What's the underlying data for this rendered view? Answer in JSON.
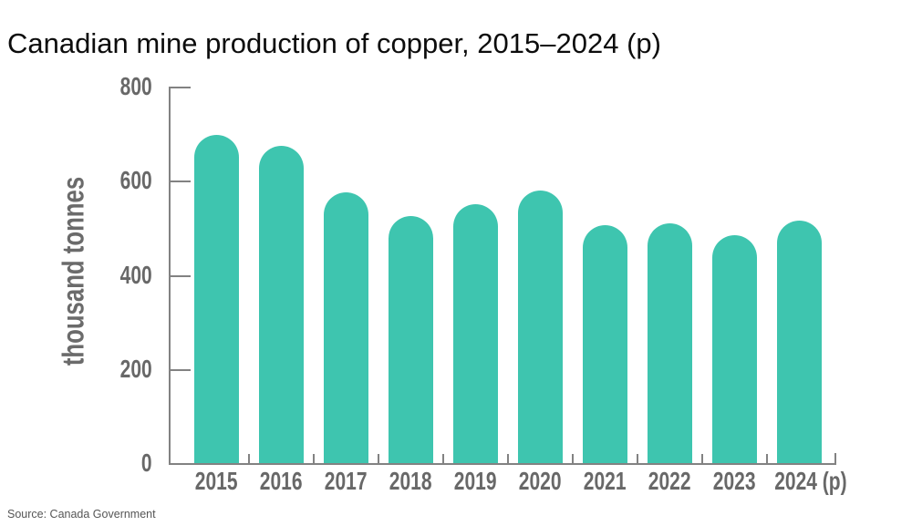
{
  "title": "Canadian mine production of copper, 2015–2024 (p)",
  "source": "Source: Canada Government",
  "chart_data": {
    "type": "bar",
    "title": "Canadian mine production of copper, 2015–2024 (p)",
    "categories": [
      "2015",
      "2016",
      "2017",
      "2018",
      "2019",
      "2020",
      "2021",
      "2022",
      "2023",
      "2024 (p)"
    ],
    "values": [
      697,
      675,
      575,
      525,
      550,
      580,
      505,
      510,
      485,
      515
    ],
    "xlabel": "",
    "ylabel": "thousand tonnes",
    "ylim": [
      0,
      800
    ],
    "yticks": [
      800,
      600,
      400,
      200,
      0
    ],
    "bar_color": "#3EC5AF",
    "axis_color": "#828282",
    "tick_label_color": "#686868",
    "grid": false,
    "legend": null
  }
}
